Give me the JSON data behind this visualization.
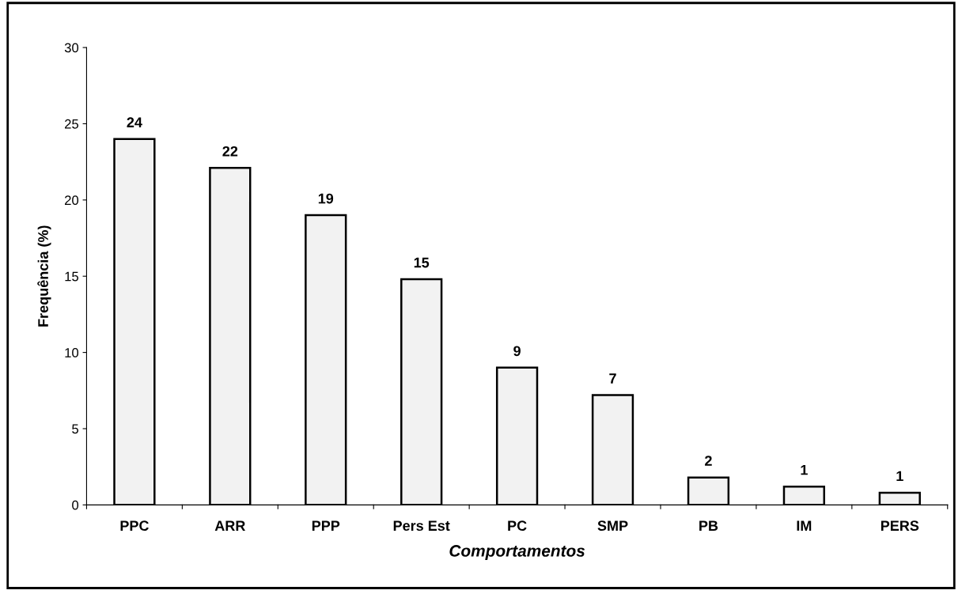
{
  "chart_data": {
    "type": "bar",
    "xlabel": "Comportamentos",
    "ylabel": "Frequência (%)",
    "categories": [
      "PPC",
      "ARR",
      "PPP",
      "Pers Est",
      "PC",
      "SMP",
      "PB",
      "IM",
      "PERS"
    ],
    "values": [
      24,
      22.1,
      19,
      14.8,
      9,
      7.2,
      1.8,
      1.2,
      0.8
    ],
    "value_labels": [
      "24",
      "22",
      "19",
      "15",
      "9",
      "7",
      "2",
      "1",
      "1"
    ],
    "color": "#f2f2f2",
    "ylim": [
      0,
      30
    ],
    "yticks": [
      0,
      5,
      10,
      15,
      20,
      25,
      30
    ],
    "grid": false
  }
}
